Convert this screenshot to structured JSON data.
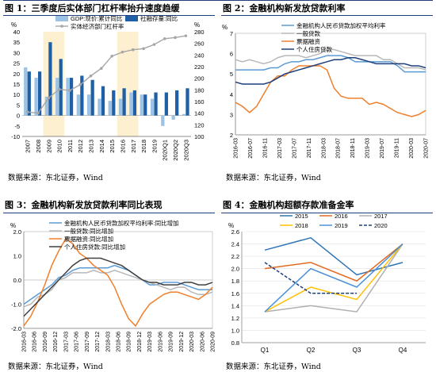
{
  "panels": [
    {
      "title": "图 1：三季度后实体部门杠杆率抬升速度趋缓",
      "source": "数据来源：东北证券，Wind"
    },
    {
      "title": "图 2：金融机构新发放贷款利率",
      "source": "数据来源：东北证券，Wind"
    },
    {
      "title": "图 3：金融机构新发放贷款利率同比表现",
      "source": "数据来源：东北证券，Wind"
    },
    {
      "title": "图 4：金融机构超额存款准备金率",
      "source": "数据来源：东北证券，Wind"
    }
  ],
  "colors": {
    "dark_blue": "#1f5fa6",
    "light_blue": "#9cc3e6",
    "grey": "#a6a6a6",
    "orange": "#f07f2c",
    "yellow": "#ffc000",
    "highlight": "#fdf0d0",
    "navy": "#1f3f7a",
    "med_blue": "#5b9bd5",
    "light_grey": "#b8b8b8"
  },
  "chart_data": [
    {
      "type": "bar",
      "title": "",
      "categories": [
        "2007",
        "2008",
        "2009",
        "2010",
        "2011",
        "2012",
        "2013",
        "2014",
        "2015",
        "2016",
        "2017",
        "2018",
        "2019",
        "2020Q1",
        "2020Q2",
        "2020Q3"
      ],
      "ylabel_left": "%",
      "ylabel_right": "%",
      "ylim_left": [
        -10,
        40
      ],
      "ylim_right": [
        100,
        280
      ],
      "yticks_left": [
        -10,
        -5,
        0,
        5,
        10,
        15,
        20,
        25,
        30,
        35,
        40
      ],
      "yticks_right": [
        100,
        120,
        140,
        160,
        180,
        200,
        220,
        240,
        260,
        280
      ],
      "highlight_categories": [
        "2009",
        "2010",
        "2016",
        "2017"
      ],
      "series": [
        {
          "name": "GDP:现价:累计同比",
          "kind": "bar",
          "axis": "left",
          "values": [
            23,
            18,
            9,
            18,
            18,
            10,
            10,
            8,
            7,
            8,
            11,
            10,
            8,
            -5,
            -2,
            0.7
          ]
        },
        {
          "name": "社融存量:同比",
          "kind": "bar",
          "axis": "left",
          "values": [
            21,
            21,
            35,
            27,
            18,
            19,
            17,
            14,
            12,
            13,
            12,
            10,
            11,
            11,
            12,
            13
          ]
        },
        {
          "name": "实体经济部门杠杆率",
          "kind": "line",
          "axis": "right",
          "values": [
            142,
            140,
            166,
            181,
            179,
            189,
            204,
            217,
            238,
            245,
            249,
            251,
            258,
            268,
            270,
            273
          ]
        }
      ],
      "legend": "top-center"
    },
    {
      "type": "line",
      "title": "",
      "x": [
        "2016-03",
        "2016-05",
        "2016-07",
        "2016-09",
        "2016-11",
        "2017-01",
        "2017-03",
        "2017-05",
        "2017-07",
        "2017-09",
        "2017-11",
        "2018-01",
        "2018-03",
        "2018-05",
        "2018-07",
        "2018-09",
        "2018-11",
        "2019-01",
        "2019-03",
        "2019-05",
        "2019-07",
        "2019-09",
        "2019-11",
        "2020-01",
        "2020-03",
        "2020-05",
        "2020-07",
        "2020-09"
      ],
      "x_tick_labels": [
        "2016-03",
        "2016-07",
        "2016-11",
        "2017-03",
        "2017-07",
        "2017-11",
        "2018-03",
        "2018-07",
        "2018-11",
        "2019-03",
        "2019-07",
        "2019-11",
        "2020-03",
        "2020-07"
      ],
      "ylabel": "%",
      "ylim": [
        2,
        7
      ],
      "yticks": [
        2,
        3,
        4,
        5,
        6,
        7
      ],
      "series": [
        {
          "name": "金融机构人民币贷款加权平均利率",
          "values": [
            5.2,
            5.2,
            5.2,
            5.2,
            5.2,
            5.3,
            5.3,
            5.5,
            5.6,
            5.6,
            5.7,
            5.7,
            5.8,
            5.9,
            5.9,
            5.9,
            5.8,
            5.6,
            5.6,
            5.6,
            5.6,
            5.6,
            5.6,
            5.4,
            5.1,
            5.1,
            5.1,
            5.1
          ]
        },
        {
          "name": "一般贷款",
          "values": [
            5.7,
            5.6,
            5.7,
            5.6,
            5.5,
            5.6,
            5.8,
            5.9,
            5.9,
            5.9,
            5.8,
            5.9,
            6.0,
            6.2,
            6.2,
            6.1,
            6.0,
            5.9,
            5.9,
            5.9,
            5.9,
            5.7,
            5.7,
            5.5,
            5.3,
            5.3,
            5.3,
            5.2
          ]
        },
        {
          "name": "票据融资",
          "values": [
            3.6,
            3.4,
            3.1,
            3.4,
            4.0,
            4.6,
            4.9,
            4.9,
            5.2,
            5.4,
            5.4,
            5.4,
            5.4,
            5.2,
            4.3,
            3.9,
            3.8,
            3.8,
            3.8,
            3.5,
            3.6,
            3.5,
            3.3,
            3.1,
            3.0,
            2.9,
            3.0,
            3.2
          ]
        },
        {
          "name": "个人住房贷款",
          "values": [
            4.6,
            4.5,
            4.5,
            4.5,
            4.5,
            4.6,
            4.8,
            5.0,
            5.1,
            5.2,
            5.3,
            5.4,
            5.5,
            5.6,
            5.7,
            5.7,
            5.8,
            5.8,
            5.7,
            5.6,
            5.5,
            5.5,
            5.5,
            5.5,
            5.5,
            5.4,
            5.4,
            5.3
          ]
        }
      ],
      "legend": "top-left"
    },
    {
      "type": "line",
      "title": "",
      "x": [
        "2016-03",
        "2016-05",
        "2016-07",
        "2016-09",
        "2016-11",
        "2017-01",
        "2017-03",
        "2017-05",
        "2017-07",
        "2017-09",
        "2017-11",
        "2018-01",
        "2018-03",
        "2018-05",
        "2018-07",
        "2018-09",
        "2018-11",
        "2019-01",
        "2019-03",
        "2019-05",
        "2019-07",
        "2019-09",
        "2019-11",
        "2020-01",
        "2020-03",
        "2020-05",
        "2020-07",
        "2020-09"
      ],
      "x_tick_labels": [
        "2016-03",
        "2016-06",
        "2016-09",
        "2016-12",
        "2017-03",
        "2017-06",
        "2017-09",
        "2017-12",
        "2018-03",
        "2018-06",
        "2018-09",
        "2018-12",
        "2019-03",
        "2019-06",
        "2019-09",
        "2019-12",
        "2020-03",
        "2020-06",
        "2020-09"
      ],
      "ylabel": "%",
      "ylim": [
        -2.0,
        2.0
      ],
      "yticks": [
        -2.0,
        -1.0,
        0.0,
        1.0,
        2.0
      ],
      "series": [
        {
          "name": "金融机构人民币贷款加权平均利率:同比增加",
          "values": [
            -1.0,
            -0.8,
            -0.6,
            -0.4,
            -0.2,
            0.1,
            0.2,
            0.4,
            0.5,
            0.5,
            0.5,
            0.5,
            0.5,
            0.6,
            0.5,
            0.4,
            0.2,
            0.0,
            -0.2,
            -0.2,
            -0.1,
            -0.1,
            -0.1,
            -0.2,
            -0.3,
            -0.4,
            -0.4,
            -0.4
          ]
        },
        {
          "name": "一般贷款:同比增加",
          "values": [
            -1.1,
            -1.0,
            -0.7,
            -0.6,
            -0.4,
            0.0,
            0.1,
            0.3,
            0.3,
            0.3,
            0.4,
            0.3,
            0.3,
            0.4,
            0.3,
            0.2,
            0.1,
            0.0,
            -0.1,
            -0.2,
            -0.3,
            -0.4,
            -0.3,
            -0.3,
            -0.5,
            -0.6,
            -0.6,
            -0.5
          ]
        },
        {
          "name": "票据融资:同比增加",
          "values": [
            -1.9,
            -1.5,
            -0.9,
            -0.2,
            0.6,
            1.2,
            1.7,
            1.5,
            1.1,
            0.9,
            0.6,
            0.4,
            0.2,
            -0.3,
            -1.0,
            -1.6,
            -1.9,
            -1.4,
            -1.0,
            -0.8,
            -0.6,
            -0.5,
            -0.5,
            -0.6,
            -0.7,
            -0.8,
            -0.6,
            -0.3
          ]
        },
        {
          "name": "个人住房贷款:同比增加",
          "values": [
            -1.5,
            -1.2,
            -0.9,
            -0.6,
            -0.3,
            0.0,
            0.3,
            0.6,
            0.8,
            0.9,
            0.9,
            0.9,
            0.8,
            0.7,
            0.6,
            0.4,
            0.2,
            0.0,
            -0.1,
            -0.1,
            -0.2,
            -0.2,
            -0.2,
            -0.1,
            -0.1,
            -0.2,
            -0.2,
            -0.1
          ]
        }
      ],
      "legend": "top-left"
    },
    {
      "type": "line",
      "title": "",
      "categories": [
        "Q1",
        "Q2",
        "Q3",
        "Q4"
      ],
      "ylabel": "%",
      "ylim": [
        0.8,
        2.6
      ],
      "yticks": [
        0.8,
        1.0,
        1.2,
        1.4,
        1.6,
        1.8,
        2.0,
        2.2,
        2.4,
        2.6
      ],
      "series": [
        {
          "name": "2015",
          "values": [
            2.3,
            2.5,
            1.9,
            2.1
          ]
        },
        {
          "name": "2016",
          "values": [
            2.0,
            2.1,
            1.8,
            2.4
          ]
        },
        {
          "name": "2017",
          "values": [
            1.3,
            1.4,
            1.3,
            2.4
          ]
        },
        {
          "name": "2018",
          "values": [
            1.3,
            1.7,
            1.5,
            2.4
          ]
        },
        {
          "name": "2019",
          "values": [
            1.3,
            2.0,
            1.7,
            2.4
          ]
        },
        {
          "name": "2020",
          "values": [
            2.1,
            1.6,
            1.6,
            null
          ]
        }
      ],
      "legend": "top"
    }
  ]
}
